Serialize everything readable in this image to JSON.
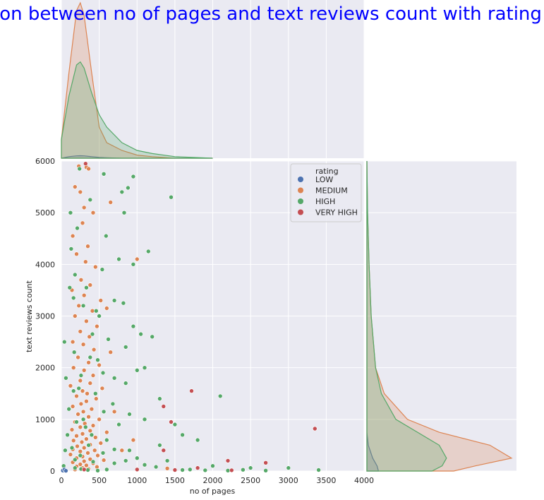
{
  "chart_data": {
    "type": "scatter",
    "title": "ralation between no of pages and text reviews count with rating level",
    "xlabel": "no of pages",
    "ylabel": "text reviews count",
    "xlim": [
      0,
      4000
    ],
    "ylim": [
      0,
      6000
    ],
    "x_ticks": [
      "0",
      "500",
      "1000",
      "1500",
      "2000",
      "2500",
      "3000",
      "3500",
      "4000"
    ],
    "y_ticks": [
      "0",
      "1000",
      "2000",
      "3000",
      "4000",
      "5000",
      "6000"
    ],
    "grid": true,
    "legend": {
      "title": "rating",
      "placement": "top-right",
      "entries": [
        "LOW",
        "MEDIUM",
        "HIGH",
        "VERY HIGH"
      ]
    },
    "colors": {
      "LOW": "#4c72b0",
      "MEDIUM": "#dd8452",
      "HIGH": "#55a868",
      "VERY HIGH": "#c44e52",
      "background": "#eaeaf2",
      "grid": "#ffffff"
    },
    "series": [
      {
        "name": "MEDIUM",
        "points": [
          [
            230,
            5900
          ],
          [
            330,
            5880
          ],
          [
            360,
            5850
          ],
          [
            180,
            5500
          ],
          [
            250,
            5400
          ],
          [
            300,
            5100
          ],
          [
            420,
            5000
          ],
          [
            280,
            4800
          ],
          [
            150,
            4550
          ],
          [
            350,
            4350
          ],
          [
            200,
            4200
          ],
          [
            320,
            4050
          ],
          [
            450,
            3950
          ],
          [
            260,
            3700
          ],
          [
            380,
            3600
          ],
          [
            140,
            3500
          ],
          [
            300,
            3400
          ],
          [
            520,
            3300
          ],
          [
            230,
            3200
          ],
          [
            410,
            3100
          ],
          [
            600,
            3150
          ],
          [
            180,
            3000
          ],
          [
            330,
            2900
          ],
          [
            470,
            2800
          ],
          [
            250,
            2700
          ],
          [
            370,
            2600
          ],
          [
            150,
            2500
          ],
          [
            290,
            2450
          ],
          [
            430,
            2350
          ],
          [
            650,
            2300
          ],
          [
            220,
            2200
          ],
          [
            360,
            2100
          ],
          [
            500,
            2050
          ],
          [
            160,
            2000
          ],
          [
            300,
            1950
          ],
          [
            420,
            1850
          ],
          [
            250,
            1750
          ],
          [
            380,
            1700
          ],
          [
            120,
            1650
          ],
          [
            540,
            1600
          ],
          [
            280,
            1550
          ],
          [
            340,
            1500
          ],
          [
            200,
            1450
          ],
          [
            460,
            1400
          ],
          [
            330,
            1350
          ],
          [
            260,
            1300
          ],
          [
            150,
            1250
          ],
          [
            400,
            1200
          ],
          [
            290,
            1150
          ],
          [
            700,
            1150
          ],
          [
            220,
            1100
          ],
          [
            360,
            1050
          ],
          [
            500,
            1000
          ],
          [
            180,
            950
          ],
          [
            310,
            920
          ],
          [
            420,
            880
          ],
          [
            250,
            850
          ],
          [
            140,
            800
          ],
          [
            380,
            780
          ],
          [
            600,
            750
          ],
          [
            280,
            720
          ],
          [
            200,
            680
          ],
          [
            450,
            650
          ],
          [
            330,
            620
          ],
          [
            160,
            590
          ],
          [
            270,
            560
          ],
          [
            520,
            540
          ],
          [
            380,
            510
          ],
          [
            210,
            480
          ],
          [
            300,
            450
          ],
          [
            150,
            420
          ],
          [
            440,
            400
          ],
          [
            250,
            380
          ],
          [
            350,
            350
          ],
          [
            120,
            320
          ],
          [
            480,
            300
          ],
          [
            280,
            280
          ],
          [
            200,
            250
          ],
          [
            380,
            230
          ],
          [
            560,
            210
          ],
          [
            300,
            190
          ],
          [
            150,
            170
          ],
          [
            420,
            150
          ],
          [
            250,
            130
          ],
          [
            330,
            110
          ],
          [
            200,
            90
          ],
          [
            470,
            80
          ],
          [
            280,
            60
          ],
          [
            360,
            40
          ],
          [
            180,
            30
          ],
          [
            800,
            400
          ],
          [
            950,
            600
          ],
          [
            1000,
            4100
          ],
          [
            650,
            5200
          ],
          [
            1400,
            50
          ]
        ]
      },
      {
        "name": "HIGH",
        "points": [
          [
            240,
            5850
          ],
          [
            560,
            5750
          ],
          [
            950,
            5700
          ],
          [
            880,
            5480
          ],
          [
            800,
            5400
          ],
          [
            1450,
            5300
          ],
          [
            380,
            5250
          ],
          [
            120,
            5000
          ],
          [
            830,
            5000
          ],
          [
            590,
            4550
          ],
          [
            1150,
            4250
          ],
          [
            760,
            4100
          ],
          [
            950,
            4000
          ],
          [
            540,
            3900
          ],
          [
            110,
            3550
          ],
          [
            700,
            3300
          ],
          [
            820,
            3250
          ],
          [
            460,
            3100
          ],
          [
            160,
            3350
          ],
          [
            290,
            3200
          ],
          [
            500,
            3000
          ],
          [
            950,
            2800
          ],
          [
            1050,
            2650
          ],
          [
            1200,
            2600
          ],
          [
            620,
            2550
          ],
          [
            850,
            2400
          ],
          [
            170,
            2300
          ],
          [
            380,
            2200
          ],
          [
            1100,
            2000
          ],
          [
            1000,
            1950
          ],
          [
            550,
            1900
          ],
          [
            260,
            1850
          ],
          [
            700,
            1800
          ],
          [
            850,
            1700
          ],
          [
            1300,
            1400
          ],
          [
            2100,
            1450
          ],
          [
            230,
            1600
          ],
          [
            450,
            1500
          ],
          [
            680,
            1300
          ],
          [
            900,
            1100
          ],
          [
            1100,
            1000
          ],
          [
            1500,
            900
          ],
          [
            760,
            900
          ],
          [
            320,
            850
          ],
          [
            1600,
            700
          ],
          [
            1800,
            600
          ],
          [
            1300,
            500
          ],
          [
            900,
            400
          ],
          [
            550,
            350
          ],
          [
            250,
            300
          ],
          [
            1000,
            250
          ],
          [
            1400,
            200
          ],
          [
            2000,
            100
          ],
          [
            2500,
            60
          ],
          [
            3000,
            60
          ],
          [
            3400,
            20
          ],
          [
            1700,
            30
          ],
          [
            1250,
            80
          ],
          [
            700,
            150
          ],
          [
            420,
            180
          ],
          [
            180,
            220
          ],
          [
            600,
            600
          ],
          [
            400,
            700
          ],
          [
            200,
            950
          ],
          [
            100,
            1200
          ],
          [
            50,
            400
          ],
          [
            30,
            100
          ],
          [
            80,
            700
          ],
          [
            60,
            1800
          ],
          [
            40,
            2500
          ],
          [
            180,
            3800
          ],
          [
            130,
            4300
          ],
          [
            210,
            4700
          ],
          [
            330,
            3550
          ],
          [
            410,
            2650
          ],
          [
            480,
            2150
          ],
          [
            160,
            1550
          ],
          [
            560,
            1150
          ],
          [
            290,
            1000
          ],
          [
            360,
            500
          ],
          [
            140,
            450
          ],
          [
            700,
            420
          ],
          [
            850,
            200
          ],
          [
            1100,
            120
          ],
          [
            1600,
            20
          ],
          [
            1900,
            15
          ],
          [
            2200,
            10
          ],
          [
            2700,
            10
          ],
          [
            2400,
            25
          ],
          [
            180,
            60
          ],
          [
            260,
            40
          ],
          [
            350,
            20
          ],
          [
            480,
            10
          ],
          [
            600,
            30
          ]
        ]
      },
      {
        "name": "VERY HIGH",
        "points": [
          [
            320,
            5950
          ],
          [
            1720,
            1550
          ],
          [
            1350,
            1250
          ],
          [
            1450,
            950
          ],
          [
            3350,
            820
          ],
          [
            1350,
            400
          ],
          [
            2200,
            200
          ],
          [
            2700,
            160
          ],
          [
            1800,
            60
          ],
          [
            1500,
            20
          ],
          [
            2250,
            15
          ],
          [
            1000,
            30
          ],
          [
            300,
            30
          ]
        ]
      },
      {
        "name": "LOW",
        "points": [
          [
            20,
            10
          ],
          [
            40,
            30
          ],
          [
            60,
            5
          ]
        ]
      }
    ],
    "marginal_x_kde": {
      "x": [
        0,
        100,
        200,
        250,
        300,
        400,
        500,
        600,
        800,
        1000,
        1200,
        1500,
        2000
      ],
      "series": [
        {
          "name": "LOW",
          "values": [
            0.0,
            0.01,
            0.015,
            0.016,
            0.015,
            0.01,
            0.005,
            0.003,
            0.0,
            0.0,
            0.0,
            0.0,
            0.0
          ]
        },
        {
          "name": "MEDIUM",
          "values": [
            0.12,
            0.55,
            0.95,
            1.0,
            0.92,
            0.55,
            0.2,
            0.1,
            0.05,
            0.02,
            0.01,
            0.0,
            0.0
          ]
        },
        {
          "name": "HIGH",
          "values": [
            0.12,
            0.4,
            0.6,
            0.62,
            0.58,
            0.42,
            0.28,
            0.2,
            0.1,
            0.05,
            0.03,
            0.01,
            0.0
          ]
        }
      ]
    },
    "marginal_y_kde": {
      "y": [
        0,
        100,
        250,
        500,
        750,
        1000,
        1500,
        2000,
        3000,
        4000,
        5000,
        6000
      ],
      "series": [
        {
          "name": "LOW",
          "values": [
            0.08,
            0.07,
            0.04,
            0.01,
            0.0,
            0.0,
            0.0,
            0.0,
            0.0,
            0.0,
            0.0,
            0.0
          ]
        },
        {
          "name": "MEDIUM",
          "values": [
            0.6,
            0.75,
            1.0,
            0.85,
            0.5,
            0.28,
            0.12,
            0.06,
            0.03,
            0.015,
            0.005,
            0.0
          ]
        },
        {
          "name": "HIGH",
          "values": [
            0.45,
            0.52,
            0.55,
            0.5,
            0.35,
            0.2,
            0.1,
            0.06,
            0.03,
            0.015,
            0.005,
            0.0
          ]
        }
      ]
    }
  }
}
